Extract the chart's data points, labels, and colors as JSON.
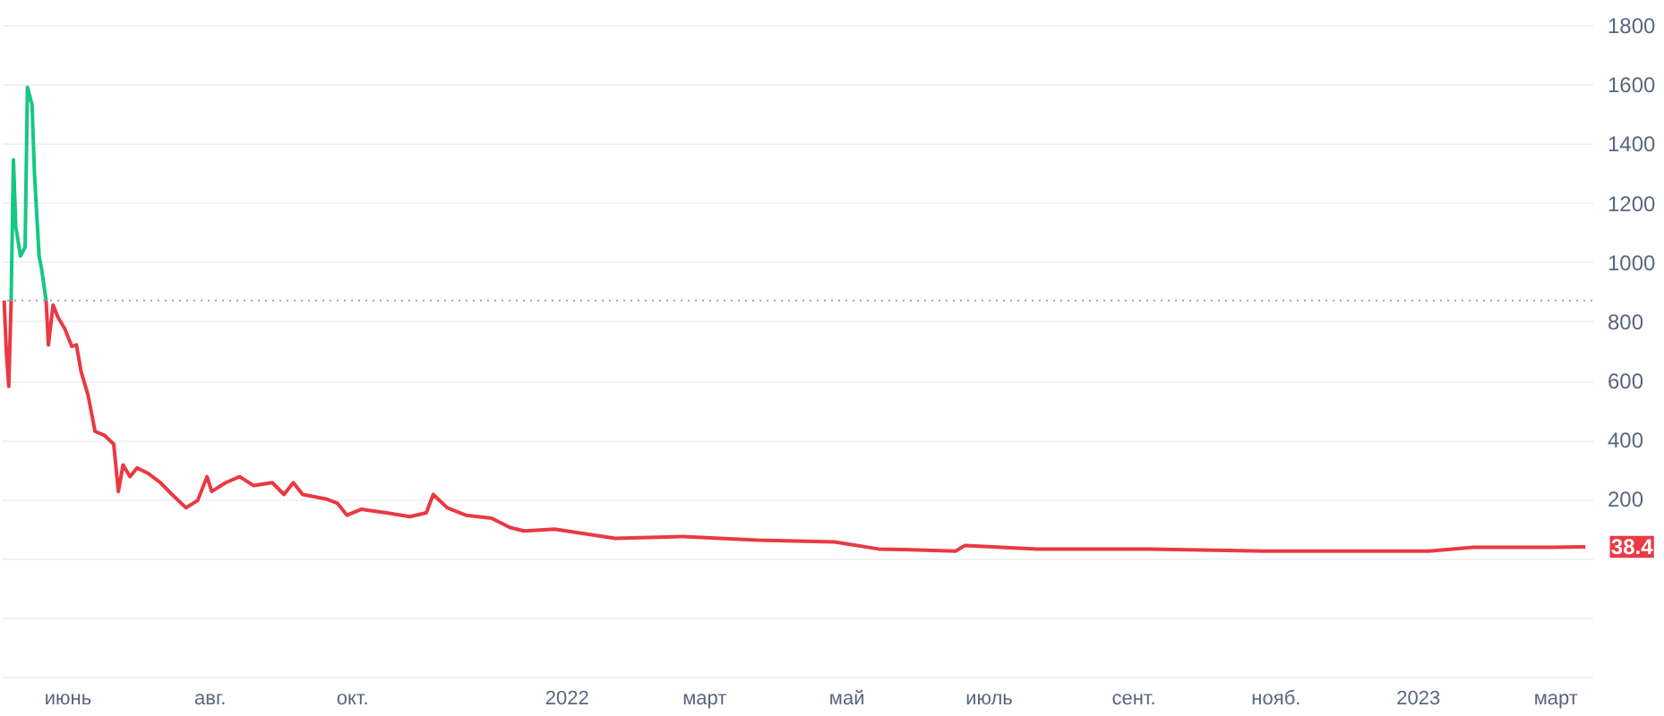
{
  "chart_data": {
    "type": "line",
    "xlim": [
      "2021-05-04",
      "2023-03-17"
    ],
    "ylim": [
      -400,
      1800
    ],
    "xticks": [
      {
        "value": "2021-06-01",
        "label": "июнь"
      },
      {
        "value": "2021-08-01",
        "label": "авг."
      },
      {
        "value": "2021-10-01",
        "label": "окт."
      },
      {
        "value": "2022-01-01",
        "label": "2022"
      },
      {
        "value": "2022-03-01",
        "label": "март"
      },
      {
        "value": "2022-05-01",
        "label": "май"
      },
      {
        "value": "2022-07-01",
        "label": "июль"
      },
      {
        "value": "2022-09-01",
        "label": "сент."
      },
      {
        "value": "2022-11-01",
        "label": "нояб."
      },
      {
        "value": "2023-01-01",
        "label": "2023"
      },
      {
        "value": "2023-03-01",
        "label": "март"
      }
    ],
    "yticks": [
      {
        "value": -400,
        "label": null
      },
      {
        "value": -200,
        "label": null
      },
      {
        "value": 0,
        "label": null
      },
      200,
      400,
      600,
      800,
      1000,
      1200,
      1400,
      1600,
      1800
    ],
    "grid": "y",
    "line_style": "solid",
    "marker": "none",
    "ref_lines": [
      {
        "axis": "y",
        "value": 870,
        "color": "#a0a6b0",
        "line_style": "dotted"
      }
    ],
    "series": [
      {
        "color": "#ea3943",
        "x": [
          "2021-05-05",
          "2021-05-06",
          "2021-05-07",
          "2021-05-08"
        ],
        "values": [
          870,
          690,
          580,
          870
        ]
      },
      {
        "color": "#16c784",
        "x": [
          "2021-05-08",
          "2021-05-09",
          "2021-05-10",
          "2021-05-12",
          "2021-05-14",
          "2021-05-15",
          "2021-05-17",
          "2021-05-18",
          "2021-05-20",
          "2021-05-21",
          "2021-05-23"
        ],
        "values": [
          870,
          1345,
          1120,
          1020,
          1050,
          1590,
          1530,
          1300,
          1020,
          980,
          870
        ]
      },
      {
        "color": "#ea3943",
        "x": [
          "2021-05-23",
          "2021-05-24",
          "2021-05-26",
          "2021-05-28",
          "2021-05-31",
          "2021-06-03",
          "2021-06-05",
          "2021-06-07",
          "2021-06-10",
          "2021-06-13",
          "2021-06-17",
          "2021-06-21",
          "2021-06-23",
          "2021-06-25",
          "2021-06-28",
          "2021-07-01",
          "2021-07-06",
          "2021-07-11",
          "2021-07-16",
          "2021-07-22",
          "2021-07-27",
          "2021-07-31",
          "2021-08-02",
          "2021-08-08",
          "2021-08-14",
          "2021-08-20",
          "2021-08-28",
          "2021-09-02",
          "2021-09-06",
          "2021-09-10",
          "2021-09-20",
          "2021-09-25",
          "2021-09-29",
          "2021-10-05",
          "2021-10-16",
          "2021-10-26",
          "2021-11-02",
          "2021-11-05",
          "2021-11-11",
          "2021-11-19",
          "2021-11-30",
          "2021-12-08",
          "2021-12-14",
          "2021-12-27",
          "2022-01-22",
          "2022-02-20",
          "2022-03-24",
          "2022-04-26",
          "2022-05-15",
          "2022-06-17",
          "2022-06-21",
          "2022-07-22",
          "2022-09-08",
          "2022-10-27",
          "2023-01-06",
          "2023-01-25",
          "2023-02-27",
          "2023-03-14"
        ],
        "values": [
          870,
          720,
          855,
          815,
          775,
          715,
          720,
          630,
          550,
          428,
          415,
          385,
          225,
          315,
          275,
          305,
          285,
          255,
          215,
          170,
          195,
          275,
          225,
          255,
          275,
          245,
          255,
          215,
          255,
          215,
          200,
          185,
          145,
          165,
          153,
          140,
          153,
          215,
          170,
          145,
          135,
          103,
          92,
          98,
          67,
          73,
          61,
          55,
          31,
          24,
          43,
          31,
          31,
          24,
          24,
          37,
          37,
          38.4
        ]
      }
    ],
    "annotations": [
      {
        "text": "38.4",
        "x": "2023-03-14",
        "y": 38.4
      }
    ]
  }
}
